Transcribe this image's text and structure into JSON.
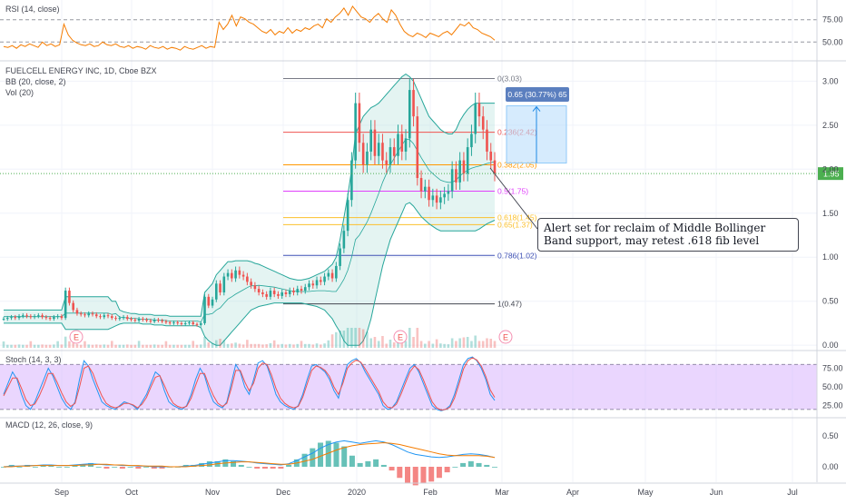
{
  "panels": {
    "rsi": {
      "title": "RSI (14, close)"
    },
    "main": {
      "title": "FUELCELL ENERGY INC, 1D, Cboe BZX",
      "bb_title": "BB (20, close, 2)",
      "vol_title": "Vol (20)"
    },
    "stoch": {
      "title": "Stoch (14, 3, 3)"
    },
    "macd": {
      "title": "MACD (12, 26, close, 9)"
    }
  },
  "colors": {
    "up": "#26a69a",
    "down": "#ef5350",
    "bb": "#26a69a",
    "bb_fill": "#b2dfdb",
    "rsi_line": "#f57c00",
    "stoch_k": "#2196f3",
    "stoch_d": "#ef5350",
    "stoch_band": "#d8b4fe",
    "macd": "#2196f3",
    "signal": "#f57c00",
    "price_line": "#4caf50",
    "measure": "#bbdefb",
    "measure_label": "#5b7fbf"
  },
  "chart_data": [
    {
      "type": "candlestick",
      "title": "FUELCELL ENERGY INC, 1D, Cboe BZX",
      "x_ticks": [
        "Sep",
        "Oct",
        "Nov",
        "Dec",
        "2020",
        "Feb",
        "Mar",
        "Apr",
        "May",
        "Jun",
        "Jul"
      ],
      "y_ticks": [
        "3.00",
        "2.50",
        "2.00",
        "1.50",
        "1.00",
        "0.50",
        "0.00"
      ],
      "ylim": [
        -0.05,
        3.2
      ],
      "last_price": "1.95",
      "price_series": [
        0.3,
        0.31,
        0.32,
        0.31,
        0.33,
        0.34,
        0.33,
        0.32,
        0.33,
        0.34,
        0.32,
        0.31,
        0.3,
        0.32,
        0.33,
        0.31,
        0.62,
        0.48,
        0.4,
        0.36,
        0.35,
        0.34,
        0.36,
        0.35,
        0.33,
        0.32,
        0.34,
        0.33,
        0.31,
        0.3,
        0.31,
        0.32,
        0.3,
        0.29,
        0.28,
        0.3,
        0.29,
        0.28,
        0.27,
        0.29,
        0.28,
        0.27,
        0.26,
        0.25,
        0.26,
        0.25,
        0.24,
        0.25,
        0.26,
        0.24,
        0.23,
        0.25,
        0.55,
        0.45,
        0.52,
        0.7,
        0.6,
        0.78,
        0.82,
        0.76,
        0.85,
        0.8,
        0.78,
        0.72,
        0.68,
        0.64,
        0.6,
        0.58,
        0.55,
        0.62,
        0.58,
        0.56,
        0.6,
        0.58,
        0.62,
        0.6,
        0.64,
        0.62,
        0.66,
        0.7,
        0.68,
        0.74,
        0.72,
        0.78,
        0.82,
        0.76,
        0.9,
        1.1,
        1.3,
        1.65,
        2.1,
        2.75,
        2.3,
        2.05,
        2.2,
        2.45,
        2.15,
        2.3,
        2.1,
        2.05,
        2.25,
        2.15,
        2.4,
        2.2,
        2.35,
        2.9,
        2.6,
        1.9,
        1.75,
        1.8,
        1.65,
        1.7,
        1.62,
        1.68,
        1.72,
        1.75,
        2.0,
        1.85,
        2.1,
        1.95,
        2.25,
        2.4,
        2.75,
        2.6,
        2.45,
        2.2,
        2.1,
        1.95
      ],
      "bb_upper": [
        0.4,
        0.4,
        0.4,
        0.4,
        0.4,
        0.4,
        0.4,
        0.4,
        0.4,
        0.4,
        0.4,
        0.4,
        0.4,
        0.4,
        0.4,
        0.4,
        0.55,
        0.55,
        0.55,
        0.55,
        0.55,
        0.55,
        0.55,
        0.55,
        0.55,
        0.55,
        0.55,
        0.55,
        0.5,
        0.5,
        0.4,
        0.38,
        0.37,
        0.36,
        0.36,
        0.35,
        0.35,
        0.35,
        0.35,
        0.34,
        0.34,
        0.34,
        0.34,
        0.33,
        0.33,
        0.33,
        0.33,
        0.33,
        0.33,
        0.33,
        0.33,
        0.33,
        0.6,
        0.65,
        0.7,
        0.8,
        0.85,
        0.9,
        0.95,
        0.95,
        0.96,
        0.96,
        0.96,
        0.96,
        0.95,
        0.93,
        0.92,
        0.9,
        0.88,
        0.86,
        0.84,
        0.82,
        0.8,
        0.78,
        0.76,
        0.75,
        0.74,
        0.74,
        0.75,
        0.76,
        0.78,
        0.8,
        0.82,
        0.84,
        0.88,
        0.92,
        1.0,
        1.2,
        1.45,
        1.7,
        2.0,
        2.4,
        2.5,
        2.6,
        2.65,
        2.7,
        2.72,
        2.75,
        2.8,
        2.85,
        2.9,
        2.95,
        3.0,
        3.05,
        3.08,
        3.05,
        3.0,
        2.9,
        2.8,
        2.7,
        2.6,
        2.55,
        2.5,
        2.45,
        2.42,
        2.4,
        2.4,
        2.45,
        2.55,
        2.62,
        2.68,
        2.72,
        2.75,
        2.75,
        2.75,
        2.75,
        2.75,
        2.75
      ],
      "bb_lower": [
        0.25,
        0.25,
        0.25,
        0.25,
        0.25,
        0.25,
        0.25,
        0.25,
        0.25,
        0.25,
        0.25,
        0.25,
        0.25,
        0.25,
        0.25,
        0.25,
        0.18,
        0.18,
        0.18,
        0.18,
        0.18,
        0.18,
        0.18,
        0.18,
        0.18,
        0.18,
        0.18,
        0.18,
        0.2,
        0.22,
        0.24,
        0.25,
        0.25,
        0.25,
        0.25,
        0.25,
        0.24,
        0.24,
        0.24,
        0.23,
        0.23,
        0.23,
        0.22,
        0.22,
        0.22,
        0.22,
        0.22,
        0.22,
        0.22,
        0.22,
        0.22,
        0.2,
        0.1,
        0.05,
        0.02,
        0.0,
        0.0,
        0.05,
        0.1,
        0.15,
        0.2,
        0.25,
        0.3,
        0.35,
        0.4,
        0.42,
        0.44,
        0.45,
        0.46,
        0.47,
        0.48,
        0.48,
        0.48,
        0.48,
        0.48,
        0.48,
        0.48,
        0.48,
        0.47,
        0.46,
        0.45,
        0.44,
        0.42,
        0.4,
        0.35,
        0.3,
        0.22,
        0.15,
        0.05,
        0.0,
        0.0,
        0.0,
        0.0,
        0.05,
        0.15,
        0.3,
        0.5,
        0.7,
        0.9,
        1.05,
        1.2,
        1.3,
        1.4,
        1.5,
        1.6,
        1.62,
        1.58,
        1.52,
        1.46,
        1.42,
        1.38,
        1.35,
        1.32,
        1.3,
        1.3,
        1.3,
        1.3,
        1.3,
        1.3,
        1.3,
        1.3,
        1.3,
        1.3,
        1.32,
        1.35,
        1.38,
        1.4,
        1.42
      ],
      "fib_levels": [
        {
          "ratio": "0(3.03)",
          "price": 3.03,
          "color": "#787b86"
        },
        {
          "ratio": "0.236(2.42)",
          "price": 2.42,
          "color": "#ef5350"
        },
        {
          "ratio": "0.382(2.05)",
          "price": 2.05,
          "color": "#ff9800"
        },
        {
          "ratio": "0.5(1.75)",
          "price": 1.75,
          "color": "#e040fb"
        },
        {
          "ratio": "0.618(1.45)",
          "price": 1.45,
          "color": "#fbc02d"
        },
        {
          "ratio": "0.65(1.37)",
          "price": 1.37,
          "color": "#fbc02d"
        },
        {
          "ratio": "0.786(1.02)",
          "price": 1.02,
          "color": "#3f51b5"
        },
        {
          "ratio": "1(0.47)",
          "price": 0.47,
          "color": "#434651"
        }
      ],
      "measure_label": "0.65 (30.77%) 65",
      "earnings_markers": [
        "E",
        "E",
        "E"
      ],
      "annotation": "Alert set for reclaim of Middle Bollinger Band support, may retest .618 fib level"
    },
    {
      "type": "line",
      "title": "RSI (14, close)",
      "y_ticks": [
        "75.00",
        "50.00"
      ],
      "ylim": [
        30,
        95
      ],
      "series": [
        {
          "values": [
            45,
            44,
            46,
            43,
            47,
            45,
            48,
            46,
            44,
            50,
            46,
            48,
            45,
            47,
            70,
            58,
            52,
            49,
            47,
            46,
            48,
            45,
            46,
            50,
            47,
            46,
            48,
            45,
            44,
            46,
            43,
            45,
            44,
            42,
            46,
            44,
            43,
            45,
            42,
            44,
            43,
            41,
            45,
            43,
            42,
            44,
            46,
            43,
            45,
            44,
            72,
            64,
            70,
            80,
            68,
            78,
            76,
            72,
            70,
            66,
            62,
            60,
            64,
            58,
            62,
            60,
            66,
            60,
            64,
            62,
            66,
            64,
            68,
            70,
            66,
            76,
            72,
            78,
            82,
            88,
            80,
            90,
            84,
            78,
            76,
            72,
            78,
            82,
            76,
            72,
            86,
            80,
            70,
            62,
            58,
            56,
            60,
            58,
            55,
            60,
            58,
            56,
            60,
            62,
            58,
            64,
            70,
            68,
            72,
            66,
            64,
            60,
            58,
            56,
            52
          ]
        }
      ]
    },
    {
      "type": "line",
      "title": "Stoch (14, 3, 3)",
      "y_ticks": [
        "75.00",
        "50.00",
        "25.00"
      ],
      "ylim": [
        10,
        95
      ],
      "band": [
        20,
        80
      ],
      "series": [
        {
          "name": "K",
          "values": [
            40,
            55,
            70,
            60,
            40,
            25,
            20,
            30,
            45,
            60,
            75,
            65,
            50,
            35,
            25,
            20,
            30,
            60,
            85,
            78,
            60,
            45,
            30,
            25,
            22,
            20,
            25,
            30,
            28,
            25,
            20,
            30,
            40,
            55,
            70,
            65,
            45,
            30,
            25,
            22,
            20,
            25,
            40,
            60,
            75,
            65,
            45,
            30,
            25,
            22,
            30,
            55,
            80,
            70,
            50,
            40,
            60,
            82,
            85,
            78,
            60,
            40,
            30,
            25,
            22,
            20,
            25,
            40,
            60,
            78,
            80,
            75,
            70,
            60,
            45,
            35,
            60,
            80,
            85,
            88,
            82,
            70,
            60,
            50,
            40,
            25,
            20,
            22,
            30,
            45,
            60,
            75,
            80,
            70,
            55,
            40,
            25,
            20,
            18,
            20,
            25,
            40,
            60,
            80,
            88,
            90,
            85,
            75,
            60,
            40,
            32
          ]
        },
        {
          "name": "D",
          "values": [
            38,
            50,
            62,
            62,
            48,
            33,
            25,
            27,
            38,
            52,
            68,
            68,
            56,
            42,
            30,
            24,
            28,
            50,
            75,
            78,
            68,
            52,
            38,
            28,
            24,
            22,
            24,
            28,
            28,
            26,
            22,
            27,
            36,
            50,
            63,
            65,
            52,
            38,
            28,
            24,
            22,
            24,
            35,
            52,
            68,
            68,
            52,
            38,
            28,
            24,
            28,
            48,
            72,
            72,
            57,
            45,
            55,
            75,
            82,
            80,
            66,
            48,
            35,
            28,
            24,
            22,
            24,
            36,
            54,
            72,
            78,
            76,
            72,
            64,
            50,
            40,
            55,
            75,
            82,
            86,
            83,
            74,
            64,
            54,
            44,
            30,
            23,
            22,
            27,
            40,
            55,
            70,
            78,
            73,
            60,
            45,
            30,
            22,
            19,
            20,
            23,
            35,
            54,
            74,
            85,
            89,
            86,
            78,
            64,
            46,
            36
          ]
        }
      ]
    },
    {
      "type": "bar",
      "title": "MACD (12, 26, close, 9)",
      "y_ticks": [
        "0.50",
        "0.00"
      ],
      "ylim": [
        -0.25,
        0.75
      ],
      "series": [
        {
          "name": "MACD",
          "values": [
            0.0,
            0.01,
            0.01,
            0.02,
            0.02,
            0.03,
            0.03,
            0.02,
            0.02,
            0.03,
            0.04,
            0.05,
            0.04,
            0.03,
            0.03,
            0.02,
            0.02,
            0.01,
            0.01,
            0.0,
            0.0,
            0.0,
            0.0,
            0.01,
            0.02,
            0.04,
            0.06,
            0.08,
            0.1,
            0.1,
            0.09,
            0.08,
            0.06,
            0.05,
            0.04,
            0.03,
            0.05,
            0.1,
            0.16,
            0.22,
            0.3,
            0.36,
            0.4,
            0.42,
            0.4,
            0.38,
            0.4,
            0.42,
            0.4,
            0.36,
            0.3,
            0.24,
            0.2,
            0.18,
            0.16,
            0.15,
            0.16,
            0.18,
            0.2,
            0.21,
            0.2,
            0.18,
            0.15
          ]
        },
        {
          "name": "Signal",
          "values": [
            0.0,
            0.0,
            0.01,
            0.01,
            0.02,
            0.02,
            0.02,
            0.02,
            0.02,
            0.02,
            0.03,
            0.03,
            0.04,
            0.04,
            0.03,
            0.03,
            0.02,
            0.02,
            0.01,
            0.01,
            0.01,
            0.0,
            0.0,
            0.0,
            0.01,
            0.02,
            0.03,
            0.05,
            0.06,
            0.07,
            0.08,
            0.08,
            0.07,
            0.06,
            0.05,
            0.04,
            0.04,
            0.06,
            0.09,
            0.12,
            0.17,
            0.22,
            0.27,
            0.31,
            0.34,
            0.36,
            0.37,
            0.38,
            0.39,
            0.38,
            0.36,
            0.33,
            0.3,
            0.27,
            0.24,
            0.21,
            0.19,
            0.18,
            0.18,
            0.18,
            0.18,
            0.17,
            0.15
          ]
        }
      ]
    }
  ],
  "x_axis_ticks": [
    "Sep",
    "Oct",
    "Nov",
    "Dec",
    "2020",
    "Feb",
    "Mar",
    "Apr",
    "May",
    "Jun",
    "Jul"
  ]
}
